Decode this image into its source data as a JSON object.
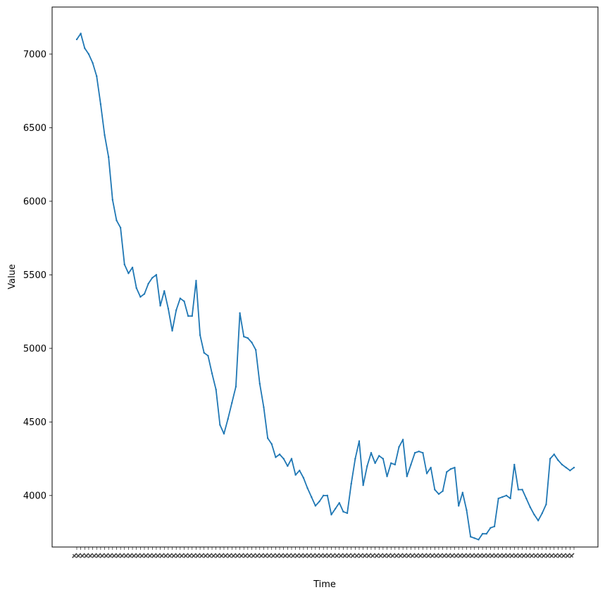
{
  "chart_data": {
    "type": "line",
    "title": "",
    "xlabel": "Time",
    "ylabel": "Value",
    "line_color": "#1f77b4",
    "grid": false,
    "ylim": [
      3650,
      7320
    ],
    "yticks": [
      4000,
      4500,
      5000,
      5500,
      6000,
      6500,
      7000
    ],
    "x_tick_labels_rotated": true,
    "series": [
      {
        "values": [
          7100,
          7140,
          7040,
          7000,
          6940,
          6850,
          6660,
          6450,
          6300,
          6010,
          5870,
          5820,
          5570,
          5510,
          5550,
          5410,
          5350,
          5370,
          5440,
          5480,
          5500,
          5290,
          5390,
          5270,
          5120,
          5260,
          5340,
          5320,
          5220,
          5220,
          5460,
          5090,
          4970,
          4950,
          4830,
          4720,
          4480,
          4420,
          4520,
          4630,
          4740,
          5240,
          5080,
          5070,
          5040,
          4990,
          4760,
          4600,
          4390,
          4350,
          4260,
          4280,
          4250,
          4200,
          4250,
          4140,
          4170,
          4120,
          4050,
          3990,
          3930,
          3960,
          4000,
          4000,
          3870,
          3910,
          3950,
          3890,
          3880,
          4080,
          4250,
          4370,
          4070,
          4200,
          4290,
          4220,
          4270,
          4250,
          4130,
          4220,
          4210,
          4330,
          4380,
          4130,
          4210,
          4290,
          4300,
          4290,
          4150,
          4190,
          4040,
          4010,
          4030,
          4160,
          4180,
          4190,
          3930,
          4020,
          3900,
          3720,
          3710,
          3700,
          3740,
          3740,
          3780,
          3790,
          3980,
          3990,
          4000,
          3980,
          4210,
          4040,
          4040,
          3980,
          3920,
          3870,
          3830,
          3880,
          3940,
          4250,
          4280,
          4240,
          4210,
          4190,
          4170,
          4190
        ]
      }
    ]
  }
}
